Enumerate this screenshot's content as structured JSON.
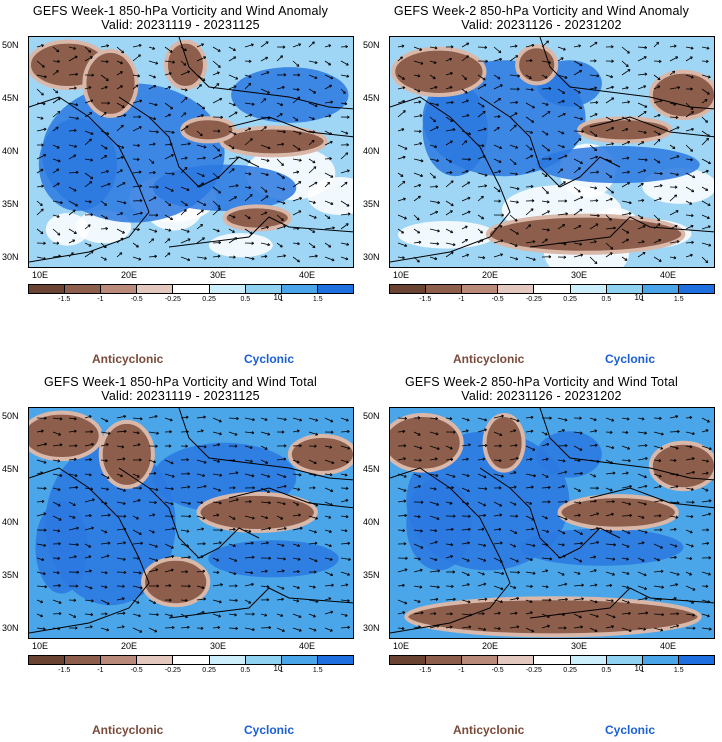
{
  "panels": [
    {
      "title": "GEFS Week-1 850-hPa Vorticity and Wind Anomaly",
      "valid": "Valid: 20231119 - 20231125"
    },
    {
      "title": "GEFS Week-2 850-hPa Vorticity and Wind Anomaly",
      "valid": "Valid: 20231126 - 20231202"
    },
    {
      "title": "GEFS Week-1 850-hPa Vorticity and Wind Total",
      "valid": "Valid: 20231119 - 20231125"
    },
    {
      "title": "GEFS Week-2 850-hPa Vorticity and Wind Total",
      "valid": "Valid: 20231126 - 20231202"
    }
  ],
  "lat_ticks": [
    "50N",
    "45N",
    "40N",
    "35N",
    "30N"
  ],
  "lon_ticks": [
    "10E",
    "20E",
    "30E",
    "40E"
  ],
  "colorbar": {
    "labels": [
      "-1.5",
      "-1",
      "-0.5",
      "-0.25",
      "0.25",
      "0.5",
      "1",
      "1.5"
    ],
    "unit_text": "10",
    "colors": [
      "#6b4333",
      "#8c5e4b",
      "#b9897a",
      "#e2c8be",
      "#ffffff",
      "#cdeffc",
      "#8fd2f2",
      "#4aa6e8",
      "#1f6fe0"
    ]
  },
  "legend": {
    "anticyclonic": "Anticyclonic",
    "cyclonic": "Cyclonic"
  },
  "colors": {
    "anticyclonic": "#7a4a3a",
    "cyclonic": "#1a5fd6",
    "land_line": "#000000"
  }
}
